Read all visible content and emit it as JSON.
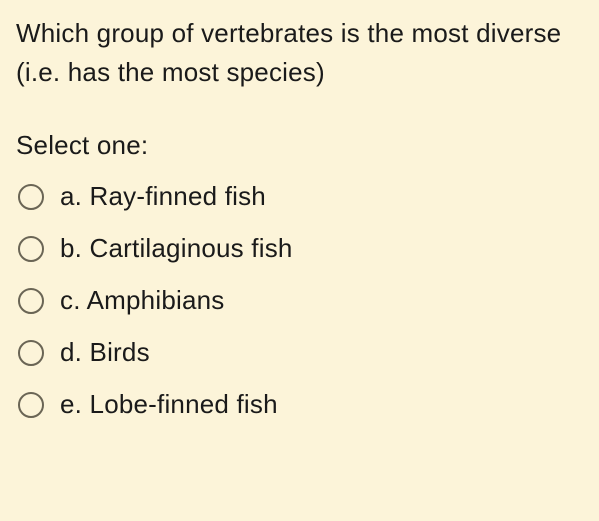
{
  "question": {
    "text": "Which group of vertebrates is the most diverse (i.e. has the most species)",
    "prompt": "Select one:",
    "options": [
      {
        "letter": "a.",
        "text": "Ray-finned fish"
      },
      {
        "letter": "b.",
        "text": "Cartilaginous fish"
      },
      {
        "letter": "c.",
        "text": "Amphibians"
      },
      {
        "letter": "d.",
        "text": "Birds"
      },
      {
        "letter": "e.",
        "text": "Lobe-finned fish"
      }
    ]
  },
  "styling": {
    "background_color": "#fcf4d9",
    "text_color": "#1a1a1a",
    "radio_border_color": "#6a6555",
    "font_size": 26,
    "line_height": 1.5
  }
}
